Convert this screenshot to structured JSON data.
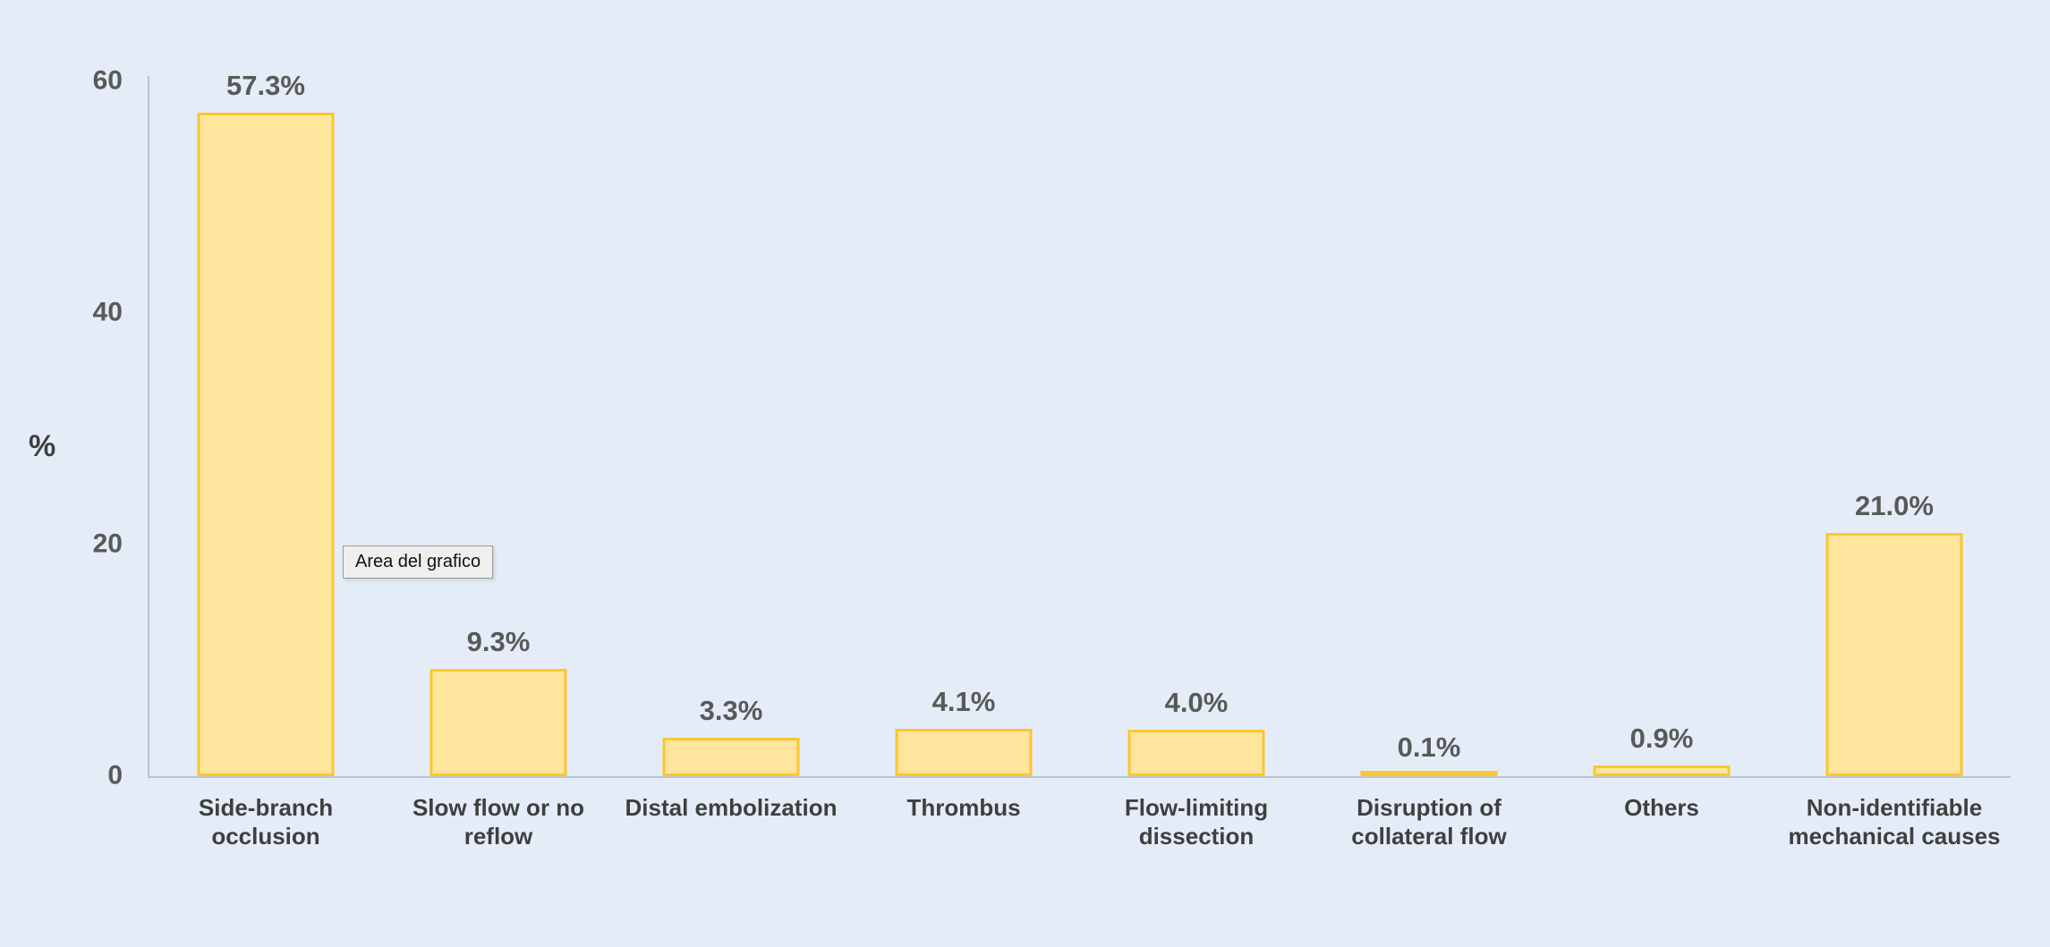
{
  "colors": {
    "background": "#e4edf7",
    "bar_fill": "#ffe69c",
    "bar_border": "#fdc52f",
    "axis_line": "#b7c6d4",
    "value_label_text": "#595959",
    "category_text": "#3f3f3f"
  },
  "tooltip": {
    "text": "Area del grafico"
  },
  "chart_data": {
    "type": "bar",
    "title": "",
    "xlabel": "",
    "ylabel": "%",
    "categories": [
      "Side-branch occlusion",
      "Slow flow or no reflow",
      "Distal embolization",
      "Thrombus",
      "Flow-limiting dissection",
      "Disruption of collateral flow",
      "Others",
      "Non-identifiable mechanical causes"
    ],
    "values": [
      57.3,
      9.3,
      3.3,
      4.1,
      4.0,
      0.1,
      0.9,
      21.0
    ],
    "value_labels": [
      "57.3%",
      "9.3%",
      "3.3%",
      "4.1%",
      "4.0%",
      "0.1%",
      "0.9%",
      "21.0%"
    ],
    "yticks": [
      0,
      20,
      40,
      60
    ],
    "ylim": [
      0,
      60
    ],
    "grid": false,
    "legend": false
  }
}
